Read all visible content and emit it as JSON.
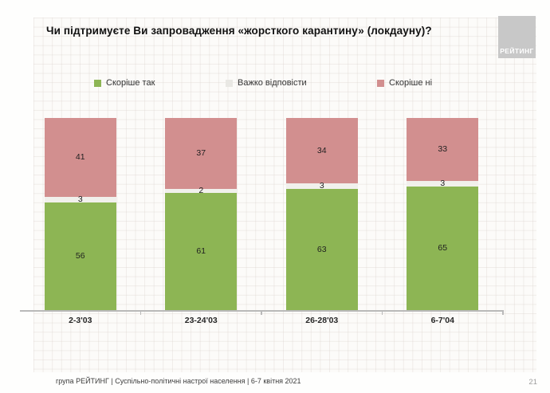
{
  "slide": {
    "title": "Чи підтримуєте Ви запровадження «жорсткого карантину» (локдауну)?",
    "logo_text": "РЕЙТИНГ",
    "footer": "група РЕЙТИНГ | Суспільно-політичні настрої населення | 6-7 квітня 2021",
    "page_number": "21"
  },
  "colors": {
    "support": "#8db554",
    "hard_to_say": "#f1f0ec",
    "against": "#d28f8f",
    "legend_hard_to_say": "#e9e8e4",
    "logo_bg": "#c8c8c8",
    "axis": "#b9b9b9"
  },
  "chart_data": {
    "type": "bar",
    "stacked": true,
    "units": "percent",
    "title": "Чи підтримуєте Ви запровадження «жорсткого карантину» (локдауну)?",
    "categories": [
      "2-3'03",
      "23-24'03",
      "26-28'03",
      "6-7'04"
    ],
    "series": [
      {
        "name": "Скоріше так",
        "color_key": "support",
        "values": [
          56,
          61,
          63,
          65
        ]
      },
      {
        "name": "Важко відповісти",
        "color_key": "hard_to_say",
        "values": [
          3,
          2,
          3,
          3
        ]
      },
      {
        "name": "Скоріше ні",
        "color_key": "against",
        "values": [
          41,
          37,
          34,
          33
        ]
      }
    ],
    "legend_position": "top",
    "ylim": [
      0,
      100
    ],
    "grid": false,
    "xlabel": "",
    "ylabel": ""
  }
}
